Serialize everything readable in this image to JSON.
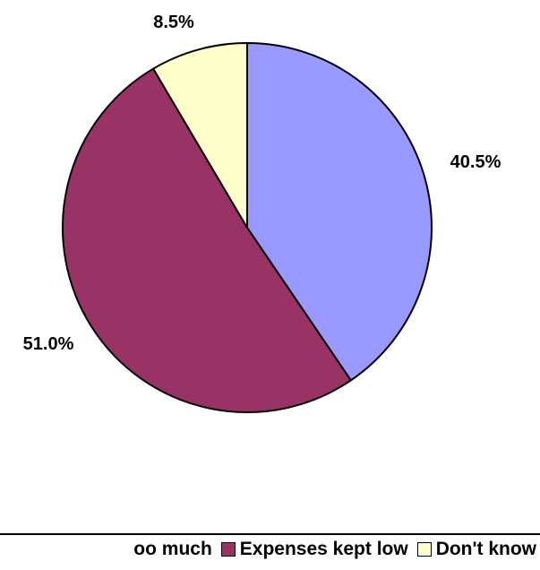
{
  "chart_data": {
    "type": "pie",
    "title": "",
    "slices": [
      {
        "label": "Too much",
        "value": 40.5,
        "display": "40.5%",
        "color": "#9999FF"
      },
      {
        "label": "Expenses kept low",
        "value": 51.0,
        "display": "51.0%",
        "color": "#993366"
      },
      {
        "label": "Don't know",
        "value": 8.5,
        "display": "8.5%",
        "color": "#FFFFCC"
      }
    ],
    "legend": {
      "placement": "bottom",
      "entries": [
        "oo much",
        "Expenses kept low",
        "Don't know"
      ]
    }
  }
}
